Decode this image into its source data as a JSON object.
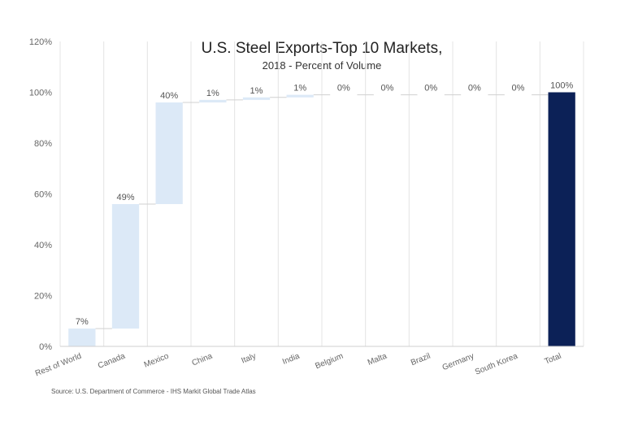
{
  "chart_data": {
    "type": "bar",
    "subtype": "waterfall",
    "title": "U.S. Steel Exports-Top 10 Markets,",
    "subtitle": "2018 - Percent of Volume",
    "xlabel": "",
    "ylabel": "",
    "ylim": [
      0,
      120
    ],
    "yticks": [
      "0%",
      "20%",
      "40%",
      "60%",
      "80%",
      "100%",
      "120%"
    ],
    "grid": "vertical",
    "legend": "none",
    "categories": [
      "Rest of World",
      "Canada",
      "Mexico",
      "China",
      "Italy",
      "India",
      "Belgium",
      "Malta",
      "Brazil",
      "Germany",
      "South Korea",
      "Total"
    ],
    "values": [
      7,
      49,
      40,
      1,
      1,
      1,
      0,
      0,
      0,
      0,
      0,
      100
    ],
    "labels": [
      "7%",
      "49%",
      "40%",
      "1%",
      "1%",
      "1%",
      "0%",
      "0%",
      "0%",
      "0%",
      "0%",
      "100%"
    ],
    "bar_color": "#dce9f7",
    "total_color": "#0c2157",
    "source": "Source: U.S. Department of Commerce - IHS Markit Global Trade Atlas"
  }
}
